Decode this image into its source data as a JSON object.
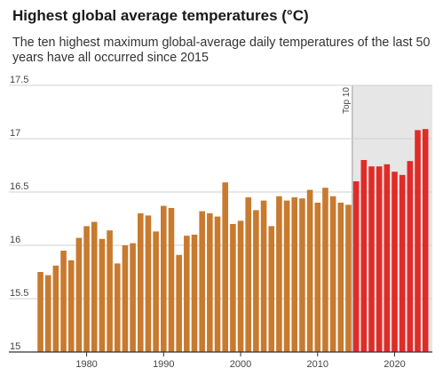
{
  "header": {
    "title": "Highest global average temperatures (°C)",
    "subtitle": "The ten highest maximum global-average daily temperatures of the last 50 years have all occurred since 2015"
  },
  "colors": {
    "historical_bar": "#c87a2e",
    "top10_bar": "#e02b27",
    "top10_shade": "#e6e6e6",
    "grid": "#d0d0d0",
    "axis": "#333333",
    "text": "#444444"
  },
  "chart_data": {
    "type": "bar",
    "x": [
      1974,
      1975,
      1976,
      1977,
      1978,
      1979,
      1980,
      1981,
      1982,
      1983,
      1984,
      1985,
      1986,
      1987,
      1988,
      1989,
      1990,
      1991,
      1992,
      1993,
      1994,
      1995,
      1996,
      1997,
      1998,
      1999,
      2000,
      2001,
      2002,
      2003,
      2004,
      2005,
      2006,
      2007,
      2008,
      2009,
      2010,
      2011,
      2012,
      2013,
      2014,
      2015,
      2016,
      2017,
      2018,
      2019,
      2020,
      2021,
      2022,
      2023,
      2024
    ],
    "values": [
      15.75,
      15.72,
      15.81,
      15.95,
      15.86,
      16.07,
      16.18,
      16.22,
      16.06,
      16.14,
      15.83,
      16.0,
      16.02,
      16.3,
      16.28,
      16.13,
      16.37,
      16.35,
      15.91,
      16.09,
      16.1,
      16.32,
      16.3,
      16.27,
      16.59,
      16.2,
      16.23,
      16.45,
      16.33,
      16.42,
      16.18,
      16.46,
      16.42,
      16.45,
      16.44,
      16.52,
      16.4,
      16.54,
      16.46,
      16.4,
      16.38,
      16.6,
      16.8,
      16.74,
      16.74,
      16.76,
      16.69,
      16.66,
      16.79,
      17.08,
      17.09
    ],
    "xlim": [
      1972.9,
      2024.9
    ],
    "ylim": [
      15,
      17.5
    ],
    "yticks": [
      15,
      15.5,
      16,
      16.5,
      17,
      17.5
    ],
    "ytick_labels": [
      "15",
      "15.5",
      "16",
      "16.5",
      "17",
      "17.5"
    ],
    "xticks": [
      1980,
      1990,
      2000,
      2010,
      2020
    ],
    "xtick_labels": [
      "1980",
      "1990",
      "2000",
      "2010",
      "2020"
    ],
    "highlight": {
      "label": "Top 10",
      "from": 2015,
      "to": 2024
    },
    "grid": true
  }
}
